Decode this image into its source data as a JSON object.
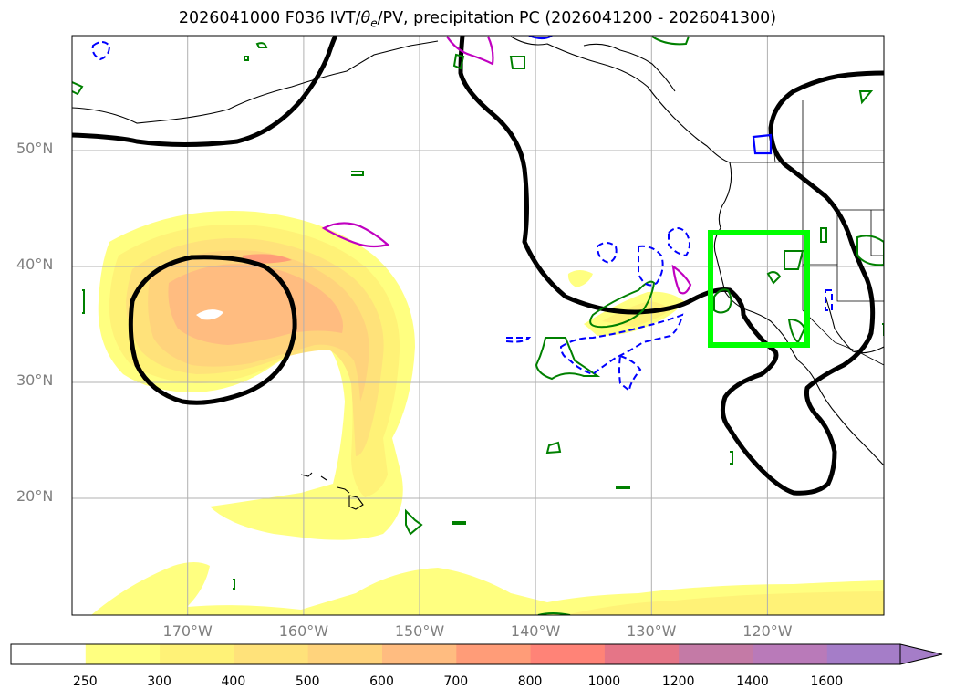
{
  "title": {
    "prefix": "2026041000 F036 IVT/",
    "theta": "θ",
    "theta_sub": "e",
    "suffix": "/PV, precipitation PC (2026041200 - 2026041300)"
  },
  "axes": {
    "lat_labels": [
      "50°N",
      "40°N",
      "30°N",
      "20°N"
    ],
    "lon_labels": [
      "170°W",
      "160°W",
      "150°W",
      "140°W",
      "130°W",
      "120°W"
    ]
  },
  "colorbar": {
    "labels": [
      "250",
      "300",
      "400",
      "500",
      "600",
      "700",
      "800",
      "1000",
      "1200",
      "1400",
      "1600"
    ],
    "colors": [
      "#ffffff",
      "#ffff80",
      "#fff277",
      "#ffe27a",
      "#ffd37c",
      "#ffbc80",
      "#ff9c78",
      "#ff8377",
      "#e57587",
      "#c47aa6",
      "#b97ab9",
      "#a57dc8"
    ],
    "extend": "max"
  },
  "legend_colors": {
    "ivt_contour": "#000000",
    "pv_pos": "#008000",
    "pv_neg": "#0000ff",
    "theta_e": "#c000c0",
    "box": "#00ff00",
    "coast": "#000000",
    "grid": "#b0b0b0"
  }
}
